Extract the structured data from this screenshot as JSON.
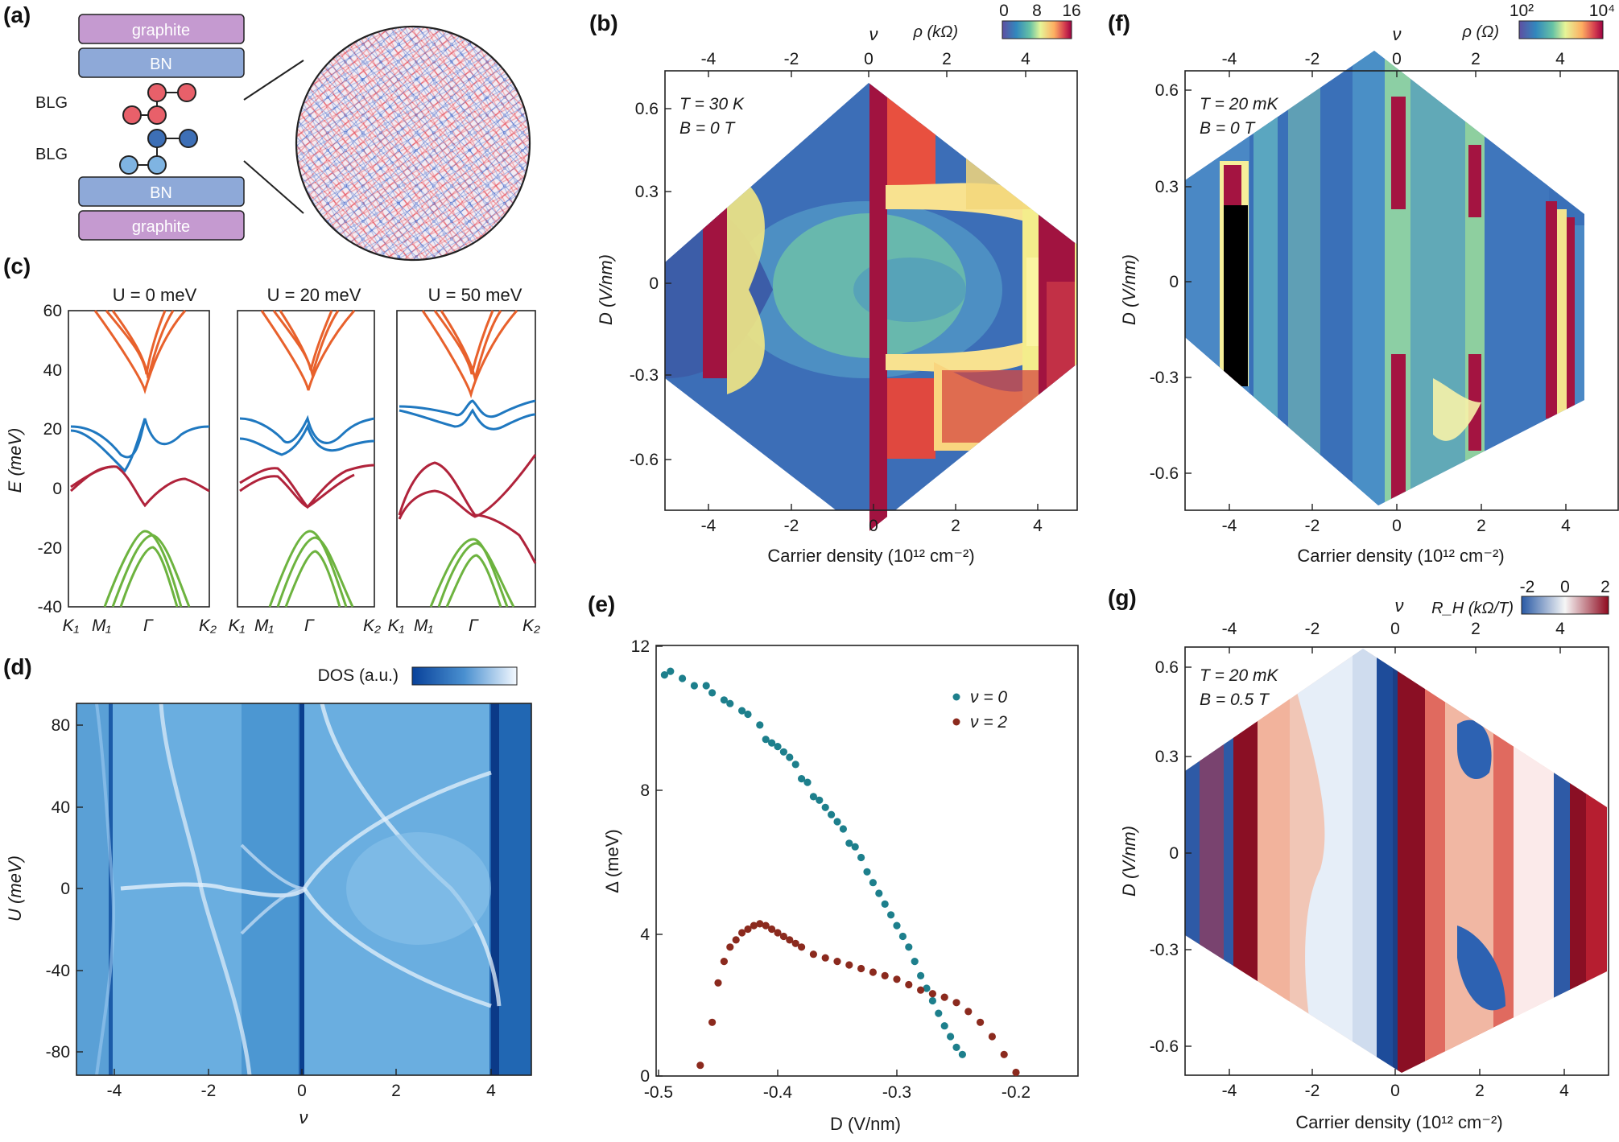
{
  "panel_labels": [
    "(a)",
    "(b)",
    "(c)",
    "(d)",
    "(e)",
    "(f)",
    "(g)"
  ],
  "panel_a": {
    "layers": [
      "graphite",
      "BN",
      "BN",
      "graphite"
    ],
    "blg_label": "BLG",
    "colors": {
      "graphite": "#c59ad0",
      "bn": "#8ea9d8",
      "red": "#e8606a",
      "blue": "#3d6fb6",
      "lightblue": "#7fb4e2",
      "moire_red": "#e9606a",
      "moire_blue": "#5a7ad0"
    }
  },
  "panel_b": {
    "top_axis_label": "ν",
    "colorbar": {
      "label": "ρ (kΩ)",
      "ticks": [
        "0",
        "8",
        "16"
      ]
    },
    "annotation_T": "T = 30 K",
    "annotation_B": "B = 0 T",
    "top_ticks": [
      "-4",
      "-2",
      "0",
      "2",
      "4"
    ],
    "bottom_ticks": [
      "-4",
      "-2",
      "0",
      "2",
      "4"
    ],
    "y_ticks": [
      "0.6",
      "0.3",
      "0",
      "-0.3",
      "-0.6"
    ],
    "xlabel": "Carrier density (10¹² cm⁻²)",
    "ylabel": "D (V/nm)"
  },
  "panel_c": {
    "subtitles": [
      "U = 0 meV",
      "U = 20 meV",
      "U = 50 meV"
    ],
    "y_ticks": [
      "60",
      "40",
      "20",
      "0",
      "-20",
      "-40"
    ],
    "ylabel": "E (meV)",
    "k_labels": [
      "K₁",
      "M₁",
      "Γ",
      "K₂"
    ],
    "band_colors": {
      "upper": "#e8612c",
      "flat_top": "#1f78c0",
      "flat_bottom": "#b0233b",
      "lower": "#6db33f"
    }
  },
  "panel_d": {
    "colorbar_label": "DOS (a.u.)",
    "y_ticks": [
      "80",
      "40",
      "0",
      "-40",
      "-80"
    ],
    "x_ticks": [
      "-4",
      "-2",
      "0",
      "2",
      "4"
    ],
    "ylabel": "U (meV)",
    "xlabel": "ν"
  },
  "panel_e": {
    "ylabel": "Δ (meV)",
    "xlabel": "D (V/nm)",
    "y_ticks": [
      "12",
      "8",
      "4",
      "0"
    ],
    "x_ticks": [
      "-0.5",
      "-0.4",
      "-0.3",
      "-0.2"
    ],
    "legend": [
      "ν = 0",
      "ν = 2"
    ]
  },
  "panel_f": {
    "top_axis_label": "ν",
    "colorbar": {
      "label": "ρ (Ω)",
      "ticks": [
        "10²",
        "10⁴"
      ]
    },
    "annotation_T": "T = 20 mK",
    "annotation_B": "B = 0 T",
    "top_ticks": [
      "-4",
      "-2",
      "0",
      "2",
      "4"
    ],
    "bottom_ticks": [
      "-4",
      "-2",
      "0",
      "2",
      "4"
    ],
    "y_ticks": [
      "0.6",
      "0.3",
      "0",
      "-0.3",
      "-0.6"
    ],
    "xlabel": "Carrier density (10¹² cm⁻²)",
    "ylabel": "D (V/nm)"
  },
  "panel_g": {
    "top_axis_label": "ν",
    "colorbar": {
      "label": "R_H (kΩ/T)",
      "ticks": [
        "-2",
        "0",
        "2"
      ]
    },
    "annotation_T": "T = 20 mK",
    "annotation_B": "B = 0.5 T",
    "top_ticks": [
      "-4",
      "-2",
      "0",
      "2",
      "4"
    ],
    "bottom_ticks": [
      "-4",
      "-2",
      "0",
      "2",
      "4"
    ],
    "y_ticks": [
      "0.6",
      "0.3",
      "0",
      "-0.3",
      "-0.6"
    ],
    "xlabel": "Carrier density (10¹² cm⁻²)",
    "ylabel": "D (V/nm)"
  },
  "chart_data": [
    {
      "type": "scatter",
      "title": "(e)",
      "xlabel": "D (V/nm)",
      "ylabel": "Δ (meV)",
      "xlim": [
        -0.5,
        -0.15
      ],
      "ylim": [
        0,
        12
      ],
      "series": [
        {
          "name": "ν = 0",
          "color": "#1d7f8c",
          "x": [
            -0.495,
            -0.49,
            -0.48,
            -0.47,
            -0.46,
            -0.455,
            -0.445,
            -0.44,
            -0.43,
            -0.425,
            -0.415,
            -0.41,
            -0.405,
            -0.4,
            -0.395,
            -0.39,
            -0.385,
            -0.38,
            -0.375,
            -0.37,
            -0.365,
            -0.36,
            -0.355,
            -0.35,
            -0.345,
            -0.34,
            -0.335,
            -0.33,
            -0.325,
            -0.32,
            -0.315,
            -0.31,
            -0.305,
            -0.3,
            -0.295,
            -0.29,
            -0.285,
            -0.28,
            -0.275,
            -0.27,
            -0.265,
            -0.26,
            -0.255,
            -0.25,
            -0.245
          ],
          "y": [
            11.2,
            11.3,
            11.1,
            10.9,
            10.9,
            10.7,
            10.5,
            10.4,
            10.2,
            10.1,
            9.8,
            9.4,
            9.3,
            9.2,
            9.05,
            8.9,
            8.7,
            8.3,
            8.2,
            7.8,
            7.7,
            7.5,
            7.3,
            7.1,
            6.9,
            6.5,
            6.4,
            6.1,
            5.7,
            5.4,
            5.1,
            4.8,
            4.5,
            4.2,
            3.9,
            3.6,
            3.2,
            2.8,
            2.45,
            2.1,
            1.75,
            1.4,
            1.1,
            0.8,
            0.6
          ]
        },
        {
          "name": "ν = 2",
          "color": "#8b2a1e",
          "x": [
            -0.465,
            -0.455,
            -0.45,
            -0.445,
            -0.44,
            -0.435,
            -0.43,
            -0.425,
            -0.42,
            -0.415,
            -0.41,
            -0.405,
            -0.4,
            -0.395,
            -0.39,
            -0.385,
            -0.38,
            -0.37,
            -0.36,
            -0.35,
            -0.34,
            -0.33,
            -0.32,
            -0.31,
            -0.3,
            -0.29,
            -0.28,
            -0.27,
            -0.26,
            -0.25,
            -0.24,
            -0.23,
            -0.22,
            -0.21,
            -0.2
          ],
          "y": [
            0.3,
            1.5,
            2.6,
            3.2,
            3.6,
            3.8,
            4.0,
            4.1,
            4.2,
            4.25,
            4.2,
            4.1,
            4.0,
            3.9,
            3.8,
            3.7,
            3.6,
            3.4,
            3.3,
            3.2,
            3.1,
            3.0,
            2.9,
            2.8,
            2.7,
            2.55,
            2.4,
            2.3,
            2.2,
            2.05,
            1.8,
            1.5,
            1.1,
            0.6,
            0.1
          ]
        }
      ]
    }
  ]
}
